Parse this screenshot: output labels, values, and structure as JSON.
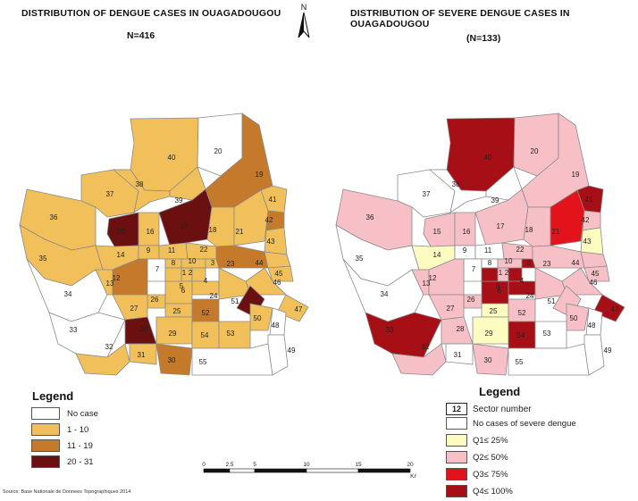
{
  "left_map": {
    "title": "DISTRIBUTION OF DENGUE CASES IN OUAGADOUGOU",
    "subtitle": "N=416",
    "legend_title": "Legend",
    "legend": [
      {
        "label": "No case",
        "color": "#ffffff"
      },
      {
        "label": "1 - 10",
        "color": "#f2c05a"
      },
      {
        "label": "11 - 19",
        "color": "#c47a2a"
      },
      {
        "label": "20 - 31",
        "color": "#6a1010"
      }
    ]
  },
  "right_map": {
    "title": "DISTRIBUTION OF SEVERE DENGUE CASES IN OUAGADOUGOU",
    "subtitle": "(N=133)",
    "legend_title": "Legend",
    "sector_box_label": "12",
    "legend": [
      {
        "label": "Sector number",
        "color": "#ffffff"
      },
      {
        "label": "No cases of severe dengue",
        "color": "#ffffff"
      },
      {
        "label": "Q1≤ 25%",
        "color": "#fdfcc0"
      },
      {
        "label": "Q2≤ 50%",
        "color": "#f7c0c6"
      },
      {
        "label": "Q3≤ 75%",
        "color": "#e3131b"
      },
      {
        "label": "Q4≤ 100%",
        "color": "#a70f16"
      }
    ]
  },
  "north_arrow": {
    "label": "N"
  },
  "scale_bar": {
    "ticks": [
      "0",
      "2.5",
      "5",
      "10",
      "15",
      "20"
    ],
    "unit": "Km"
  },
  "source": "Source: Base Nationale de Donnees Topographiques 2014",
  "colors": {
    "none": "#ffffff",
    "light": "#f2c05a",
    "mid": "#c47a2a",
    "dark": "#6a1010",
    "q1": "#fdfcc0",
    "q2": "#f7c0c6",
    "q3": "#e3131b",
    "q4": "#a70f16",
    "outline": "#8a8a8a"
  },
  "sectors": [
    {
      "id": "40",
      "left": "light",
      "right": "q4"
    },
    {
      "id": "20",
      "left": "none",
      "right": "q2"
    },
    {
      "id": "37",
      "left": "light",
      "right": "none"
    },
    {
      "id": "38",
      "left": "light",
      "right": "none"
    },
    {
      "id": "39",
      "left": "light",
      "right": "none"
    },
    {
      "id": "19",
      "left": "mid",
      "right": "q2"
    },
    {
      "id": "41",
      "left": "light",
      "right": "q4"
    },
    {
      "id": "36",
      "left": "light",
      "right": "q2"
    },
    {
      "id": "15",
      "left": "dark",
      "right": "q2"
    },
    {
      "id": "16",
      "left": "light",
      "right": "q2"
    },
    {
      "id": "17",
      "left": "dark",
      "right": "q2"
    },
    {
      "id": "18",
      "left": "light",
      "right": "q2"
    },
    {
      "id": "21",
      "left": "light",
      "right": "q3"
    },
    {
      "id": "42",
      "left": "mid",
      "right": "q2"
    },
    {
      "id": "43",
      "left": "light",
      "right": "q1"
    },
    {
      "id": "35",
      "left": "light",
      "right": "none"
    },
    {
      "id": "14",
      "left": "light",
      "right": "q1"
    },
    {
      "id": "9",
      "left": "light",
      "right": "none"
    },
    {
      "id": "11",
      "left": "light",
      "right": "none"
    },
    {
      "id": "22",
      "left": "light",
      "right": "q2"
    },
    {
      "id": "7",
      "left": "none",
      "right": "none"
    },
    {
      "id": "8",
      "left": "light",
      "right": "none"
    },
    {
      "id": "10",
      "left": "light",
      "right": "q2"
    },
    {
      "id": "3",
      "left": "light",
      "right": "q4"
    },
    {
      "id": "23",
      "left": "mid",
      "right": "q2"
    },
    {
      "id": "44",
      "left": "light",
      "right": "q2"
    },
    {
      "id": "45",
      "left": "light",
      "right": "q2"
    },
    {
      "id": "34",
      "left": "none",
      "right": "none"
    },
    {
      "id": "13",
      "left": "light",
      "right": "q2"
    },
    {
      "id": "12",
      "left": "mid",
      "right": "q2"
    },
    {
      "id": "1",
      "left": "light",
      "right": "q2"
    },
    {
      "id": "2",
      "left": "light",
      "right": "q4"
    },
    {
      "id": "4",
      "left": "light",
      "right": "q4"
    },
    {
      "id": "6",
      "left": "light",
      "right": "q4"
    },
    {
      "id": "26",
      "left": "light",
      "right": "q2"
    },
    {
      "id": "46",
      "left": "light",
      "right": "q2"
    },
    {
      "id": "5",
      "left": "light",
      "right": "q4"
    },
    {
      "id": "24",
      "left": "light",
      "right": "q2"
    },
    {
      "id": "51",
      "left": "dark",
      "right": "q2"
    },
    {
      "id": "47",
      "left": "light",
      "right": "q4"
    },
    {
      "id": "27",
      "left": "light",
      "right": "q2"
    },
    {
      "id": "25",
      "left": "light",
      "right": "q1"
    },
    {
      "id": "52",
      "left": "mid",
      "right": "q2"
    },
    {
      "id": "50",
      "left": "light",
      "right": "q2"
    },
    {
      "id": "48",
      "left": "none",
      "right": "none"
    },
    {
      "id": "33",
      "left": "none",
      "right": "q4"
    },
    {
      "id": "28",
      "left": "dark",
      "right": "q2"
    },
    {
      "id": "29",
      "left": "light",
      "right": "q1"
    },
    {
      "id": "54",
      "left": "light",
      "right": "q4"
    },
    {
      "id": "53",
      "left": "light",
      "right": "none"
    },
    {
      "id": "32",
      "left": "light",
      "right": "q2"
    },
    {
      "id": "31",
      "left": "light",
      "right": "none"
    },
    {
      "id": "30",
      "left": "mid",
      "right": "q2"
    },
    {
      "id": "55",
      "left": "none",
      "right": "none"
    },
    {
      "id": "49",
      "left": "none",
      "right": "none"
    }
  ]
}
